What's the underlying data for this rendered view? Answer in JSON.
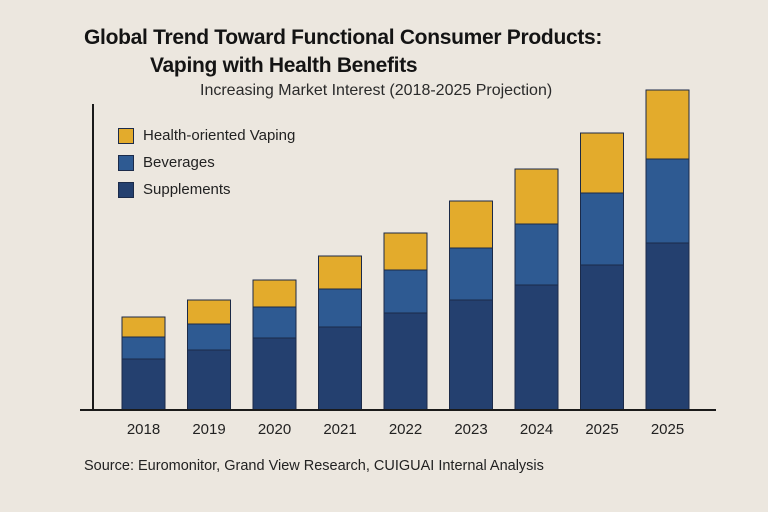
{
  "chart_data": {
    "type": "bar",
    "stacked": true,
    "title": "Global Trend Toward Functional Consumer Products:",
    "title_line2": "Vaping with Health Benefits",
    "subtitle": "Increasing Market Interest (2018-2025 Projection)",
    "categories": [
      "2018",
      "2019",
      "2020",
      "2021",
      "2022",
      "2023",
      "2024",
      "2025",
      "2025"
    ],
    "series": [
      {
        "name": "Supplements",
        "color": "#24406f",
        "values": [
          51,
          60,
          72,
          83,
          97,
          110,
          125,
          145,
          167
        ]
      },
      {
        "name": "Beverages",
        "color": "#2e5a92",
        "values": [
          22,
          26,
          31,
          38,
          43,
          52,
          61,
          72,
          84
        ]
      },
      {
        "name": "Health-oriented Vaping",
        "color": "#e3ab2c",
        "values": [
          20,
          24,
          27,
          33,
          37,
          47,
          55,
          60,
          69
        ]
      }
    ],
    "legend_order": [
      "Health-oriented Vaping",
      "Beverages",
      "Supplements"
    ],
    "legend_position": "top-left",
    "xlabel": "",
    "ylabel": "",
    "ylim": [
      0,
      310
    ],
    "y_ticks_shown": false,
    "grid": false
  },
  "source": "Source: Euromonitor, Grand View Research, CUIGUAI Internal Analysis"
}
